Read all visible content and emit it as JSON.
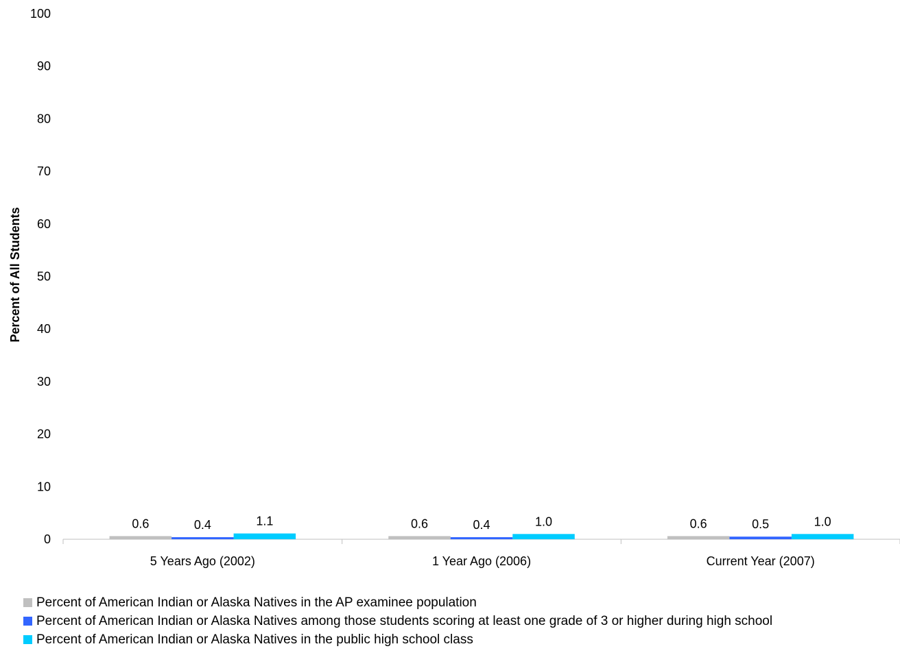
{
  "chart_data": {
    "type": "bar",
    "categories": [
      "5 Years Ago (2002)",
      "1 Year Ago (2006)",
      "Current Year (2007)"
    ],
    "series": [
      {
        "name": "Percent of American Indian or Alaska Natives in the AP examinee population",
        "values": [
          0.6,
          0.6,
          0.6
        ],
        "labels": [
          "0.6",
          "0.6",
          "0.6"
        ],
        "color": "#c0c0c0"
      },
      {
        "name": "Percent of American Indian or Alaska Natives among those students scoring at least one grade of 3 or higher during high school",
        "values": [
          0.4,
          0.4,
          0.5
        ],
        "labels": [
          "0.4",
          "0.4",
          "0.5"
        ],
        "color": "#3366ff"
      },
      {
        "name": "Percent of American Indian or Alaska Natives in the public high school class",
        "values": [
          1.1,
          1.0,
          1.0
        ],
        "labels": [
          "1.1",
          "1.0",
          "1.0"
        ],
        "color": "#00ccff"
      }
    ],
    "ylabel": "Percent of All Students",
    "ylim": [
      0,
      100
    ],
    "yticks": [
      "0",
      "10",
      "20",
      "30",
      "40",
      "50",
      "60",
      "70",
      "80",
      "90",
      "100"
    ],
    "grid": false,
    "legend_position": "bottom-left"
  }
}
